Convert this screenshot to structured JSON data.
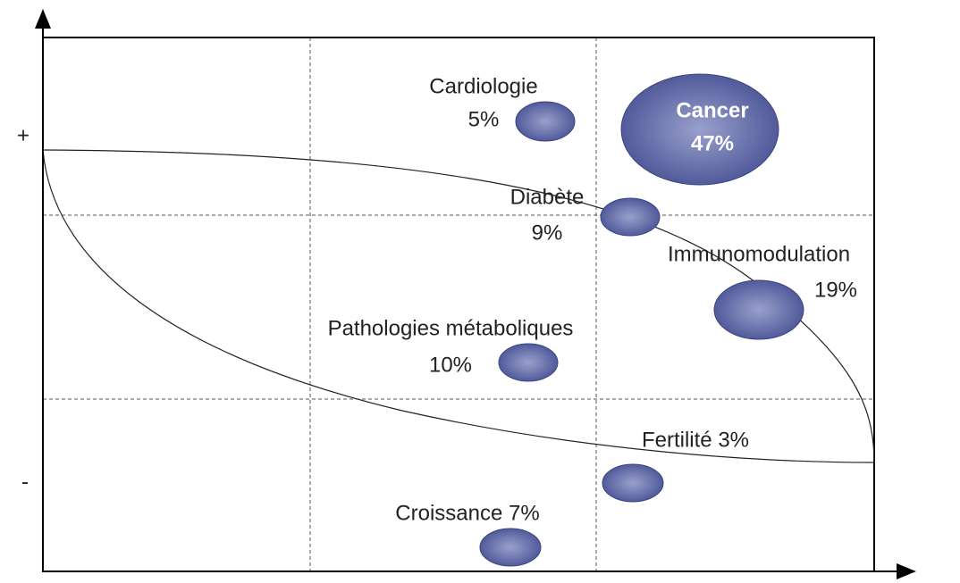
{
  "axes": {
    "top": "+",
    "bottom": "-"
  },
  "nodes": [
    {
      "lines": [
        "Cardiologie",
        "5%"
      ]
    },
    {
      "lines": [
        "Cancer",
        "47%"
      ]
    },
    {
      "lines": [
        "Diabète",
        "9%"
      ]
    },
    {
      "lines": [
        "Immunomodulation",
        "19%"
      ]
    },
    {
      "lines": [
        "Pathologies métaboliques",
        "10%"
      ]
    },
    {
      "lines": [
        "Fertilité 3%"
      ]
    },
    {
      "lines": [
        "Croissance 7%"
      ]
    }
  ]
}
